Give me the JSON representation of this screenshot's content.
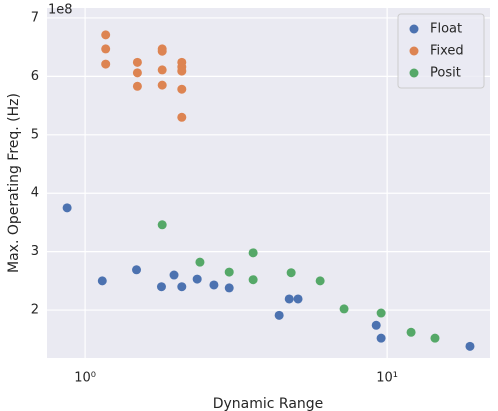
{
  "chart_data": {
    "type": "scatter",
    "x_label": "Dynamic Range",
    "y_label": "Max. Operating Freq. (Hz)",
    "y_offset_label": "1e8",
    "xscale": "log",
    "xlim": [
      0.748,
      21.9
    ],
    "ylim": [
      1.18,
      7.17
    ],
    "xticks": [
      {
        "value": 1,
        "label": "10⁰"
      },
      {
        "value": 10,
        "label": "10¹"
      }
    ],
    "yticks": [
      2,
      3,
      4,
      5,
      6,
      7
    ],
    "grid": true,
    "legend": "upper right",
    "background": "#eaeaf2",
    "series": [
      {
        "name": "Float",
        "color": "#4c72b0",
        "x": [
          0.872,
          1.14,
          1.48,
          1.79,
          1.97,
          2.09,
          2.35,
          2.67,
          3.0,
          4.39,
          4.74,
          5.07,
          9.2,
          9.55,
          18.8
        ],
        "values": [
          3.75,
          2.5,
          2.69,
          2.4,
          2.6,
          2.4,
          2.53,
          2.43,
          2.38,
          1.91,
          2.19,
          2.19,
          1.74,
          1.52,
          1.38
        ]
      },
      {
        "name": "Fixed",
        "color": "#dd8452",
        "x": [
          1.17,
          1.17,
          1.17,
          1.49,
          1.49,
          1.49,
          1.8,
          1.8,
          1.8,
          1.8,
          2.09,
          2.09,
          2.09,
          2.09,
          2.09
        ],
        "values": [
          6.71,
          6.47,
          6.21,
          6.24,
          6.06,
          5.83,
          6.47,
          6.43,
          6.11,
          5.85,
          6.24,
          6.16,
          6.09,
          5.78,
          5.3
        ]
      },
      {
        "name": "Posit",
        "color": "#55a868",
        "x": [
          1.8,
          2.4,
          3.0,
          3.6,
          3.6,
          4.81,
          6.0,
          7.2,
          9.55,
          12.0,
          14.4
        ],
        "values": [
          3.46,
          2.82,
          2.65,
          2.98,
          2.52,
          2.64,
          2.5,
          2.02,
          1.95,
          1.62,
          1.52
        ]
      }
    ]
  }
}
